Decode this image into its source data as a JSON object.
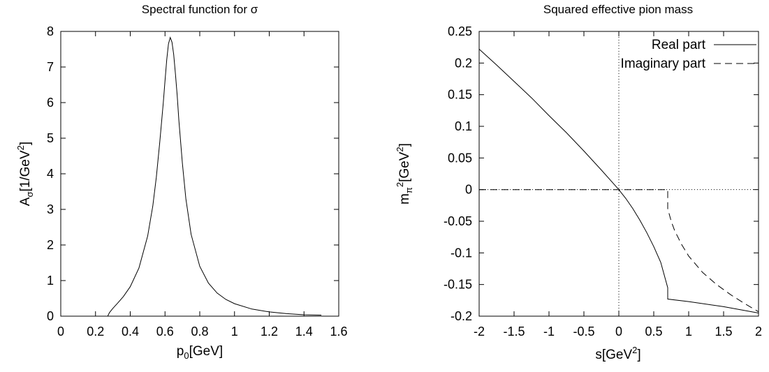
{
  "chart_data": [
    {
      "type": "line",
      "title": "Spectral function for σ",
      "xlabel": "p₀[GeV]",
      "ylabel": "Aσ[1/GeV²]",
      "xlim": [
        0,
        1.6
      ],
      "ylim": [
        0,
        8
      ],
      "xticks": [
        "0",
        "0.2",
        "0.4",
        "0.6",
        "0.8",
        "1",
        "1.2",
        "1.4",
        "1.6"
      ],
      "yticks": [
        "0",
        "1",
        "2",
        "3",
        "4",
        "5",
        "6",
        "7",
        "8"
      ],
      "grid": false,
      "series": [
        {
          "x": [
            0.0,
            0.27,
            0.28,
            0.3,
            0.33,
            0.36,
            0.4,
            0.45,
            0.5,
            0.53,
            0.55,
            0.57,
            0.59,
            0.6,
            0.61,
            0.62,
            0.63,
            0.64,
            0.65,
            0.66,
            0.67,
            0.68,
            0.7,
            0.72,
            0.75,
            0.8,
            0.85,
            0.9,
            0.95,
            1.0,
            1.1,
            1.2,
            1.3,
            1.4,
            1.5
          ],
          "y": [
            0.0,
            0.0,
            0.1,
            0.22,
            0.38,
            0.55,
            0.83,
            1.35,
            2.25,
            3.1,
            3.9,
            4.9,
            6.0,
            6.6,
            7.2,
            7.65,
            7.83,
            7.7,
            7.35,
            6.8,
            6.2,
            5.5,
            4.3,
            3.3,
            2.3,
            1.4,
            0.93,
            0.65,
            0.47,
            0.35,
            0.2,
            0.12,
            0.07,
            0.04,
            0.03
          ]
        }
      ]
    },
    {
      "type": "line",
      "title": "Squared effective pion mass",
      "xlabel": "s[GeV²]",
      "ylabel": "mπ²[GeV²]",
      "xlim": [
        -2,
        2
      ],
      "ylim": [
        -0.2,
        0.25
      ],
      "xticks": [
        "-2",
        "-1.5",
        "-1",
        "-0.5",
        "0",
        "0.5",
        "1",
        "1.5",
        "2"
      ],
      "yticks": [
        "-0.2",
        "-0.15",
        "-0.1",
        "-0.05",
        "0",
        "0.05",
        "0.1",
        "0.15",
        "0.2",
        "0.25"
      ],
      "grid": false,
      "legend": "top-right",
      "reference_lines": {
        "x": 0,
        "y": 0
      },
      "series": [
        {
          "name": "Real part",
          "style": "solid",
          "x": [
            -2.0,
            -1.75,
            -1.5,
            -1.25,
            -1.0,
            -0.75,
            -0.5,
            -0.25,
            0.0,
            0.1,
            0.2,
            0.3,
            0.4,
            0.5,
            0.6,
            0.7,
            0.7,
            1.0,
            1.5,
            2.0
          ],
          "y": [
            0.222,
            0.197,
            0.171,
            0.145,
            0.117,
            0.09,
            0.061,
            0.031,
            0.0,
            -0.014,
            -0.03,
            -0.048,
            -0.068,
            -0.09,
            -0.115,
            -0.155,
            -0.173,
            -0.177,
            -0.185,
            -0.195
          ]
        },
        {
          "name": "Imaginary part",
          "style": "dashed",
          "x": [
            -2.0,
            0.7,
            0.7,
            0.75,
            0.8,
            0.9,
            1.0,
            1.2,
            1.4,
            1.6,
            1.8,
            2.0
          ],
          "y": [
            0.0,
            0.0,
            -0.03,
            -0.05,
            -0.065,
            -0.087,
            -0.105,
            -0.131,
            -0.15,
            -0.166,
            -0.18,
            -0.193
          ]
        }
      ]
    }
  ]
}
